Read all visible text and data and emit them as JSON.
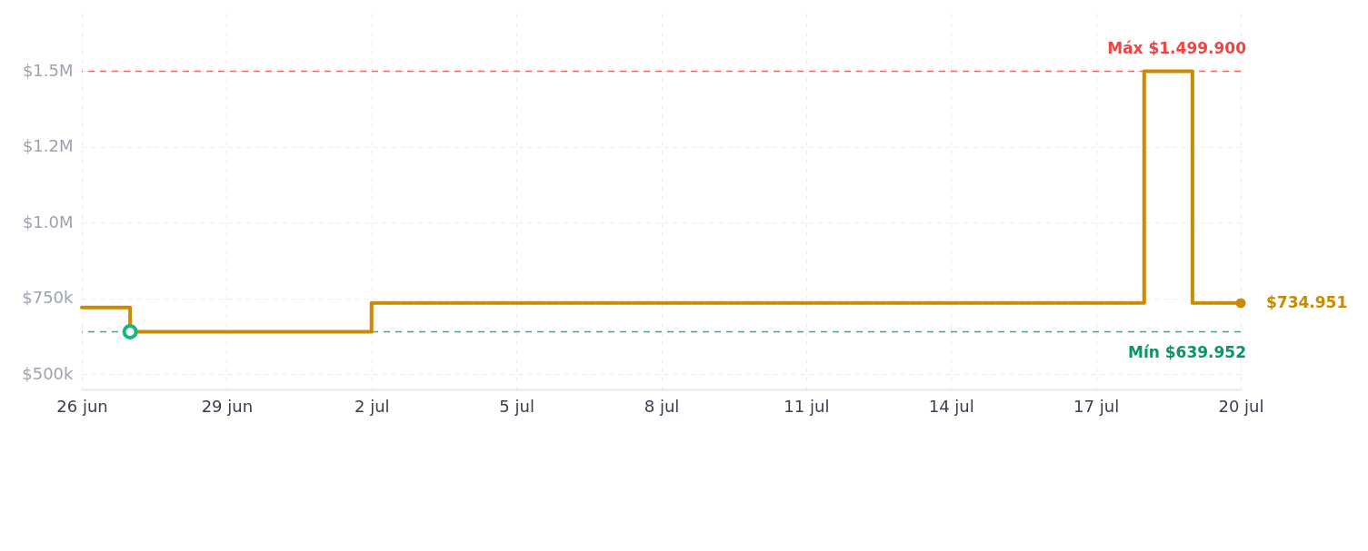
{
  "chart_data": {
    "type": "step",
    "xlim": [
      "--06-26",
      "--07-20"
    ],
    "xticks": [
      {
        "value": "--06-26",
        "label": "26 jun"
      },
      {
        "value": "--06-29",
        "label": "29 jun"
      },
      {
        "value": "--07-02",
        "label": "2 jul"
      },
      {
        "value": "--07-05",
        "label": "5 jul"
      },
      {
        "value": "--07-08",
        "label": "8 jul"
      },
      {
        "value": "--07-11",
        "label": "11 jul"
      },
      {
        "value": "--07-14",
        "label": "14 jul"
      },
      {
        "value": "--07-17",
        "label": "17 jul"
      },
      {
        "value": "--07-20",
        "label": "20 jul"
      }
    ],
    "ylim": [
      450000,
      1690000
    ],
    "yticks": [
      {
        "value": 500000,
        "label": "$500k"
      },
      {
        "value": 750000,
        "label": "$750k"
      },
      {
        "value": 1000000,
        "label": "$1.0M"
      },
      {
        "value": 1250000,
        "label": "$1.2M"
      },
      {
        "value": 1500000,
        "label": "$1.5M"
      }
    ],
    "grid": true,
    "series": [
      {
        "color": "#ca8a04",
        "x": [
          "--06-26",
          "--06-27",
          "--07-02",
          "--07-18",
          "--07-19",
          "--07-20"
        ],
        "values": [
          720000,
          639952,
          734951,
          1499900,
          734951,
          734951
        ]
      },
      {
        "type": "scatter",
        "color": "#10b981",
        "marker": "circle",
        "x": [
          "--06-27"
        ],
        "values": [
          639952
        ]
      }
    ],
    "ref_lines": [
      {
        "axis": "y",
        "value": 1499900,
        "label": "Máx $1.499.900",
        "color": "#ef4444",
        "line_style": "dashed"
      },
      {
        "axis": "y",
        "value": 639952,
        "label": "Mín $639.952",
        "color": "#059669",
        "line_style": "dashed"
      }
    ],
    "annotations": [
      {
        "text": "$734.951",
        "x": "--07-20",
        "y": 734951
      }
    ]
  }
}
